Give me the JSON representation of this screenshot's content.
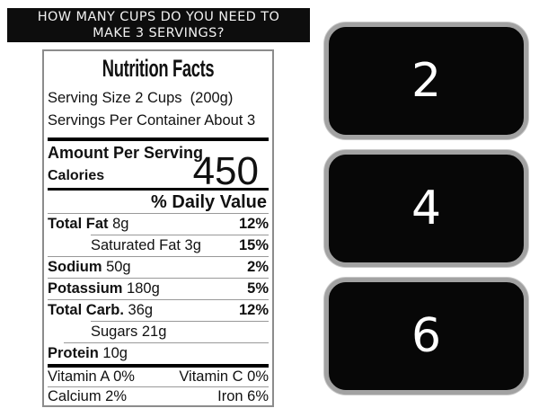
{
  "question": {
    "line1": "HOW MANY CUPS DO YOU NEED TO",
    "line2": "MAKE 3 SERVINGS?"
  },
  "label": {
    "title": "Nutrition Facts",
    "serving_size": "Serving Size 2 Cups  (200g)",
    "servings_per": "Servings Per Container About 3",
    "amount_per": "Amount Per Serving",
    "calories_label": "Calories",
    "calories_value": "450",
    "daily_value_header": "% Daily Value",
    "rows": [
      {
        "bold": "Total Fat",
        "rest": " 8g",
        "pct": "12%"
      },
      {
        "bold": "",
        "rest": "Saturated Fat 3g",
        "pct": "15%"
      },
      {
        "bold": "Sodium",
        "rest": " 50g",
        "pct": "2%"
      },
      {
        "bold": "Potassium",
        "rest": " 180g",
        "pct": "5%"
      },
      {
        "bold": "Total Carb.",
        "rest": " 36g",
        "pct": "12%"
      },
      {
        "bold": "",
        "rest": "Sugars 21g",
        "pct": ""
      },
      {
        "bold": "Protein",
        "rest": " 10g",
        "pct": ""
      }
    ],
    "vitamins": [
      {
        "left": "Vitamin A 0%",
        "right": "Vitamin C 0%"
      },
      {
        "left": "Calcium 2%",
        "right": "Iron 6%"
      }
    ]
  },
  "answers": [
    {
      "label": "2"
    },
    {
      "label": "4"
    },
    {
      "label": "6"
    }
  ],
  "colors": {
    "banner_bg": "#0d0d0d",
    "button_bg": "#070707",
    "button_border": "#a2a2a2",
    "label_border": "#8c8c8c",
    "hairline": "#999999",
    "text": "#111111",
    "button_text": "#ffffff"
  }
}
